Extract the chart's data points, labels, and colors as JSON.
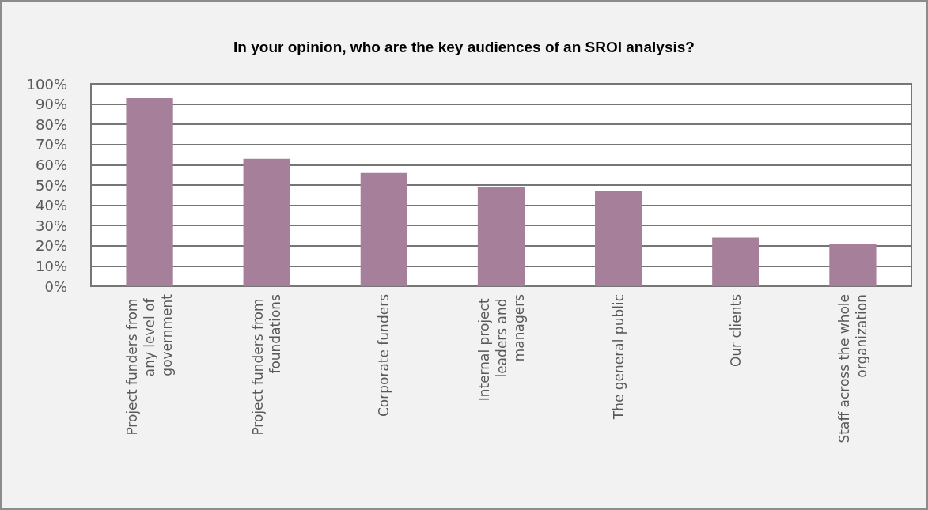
{
  "chart_data": {
    "type": "bar",
    "title": "In your opinion, who are the key audiences of an SROI analysis?",
    "categories": [
      "Project funders from any level of government",
      "Project funders from foundations",
      "Corporate funders",
      "Internal project leaders and managers",
      "The general public",
      "Our clients",
      "Staff across the whole organization"
    ],
    "values": [
      93,
      63,
      56,
      49,
      47,
      24,
      21
    ],
    "color": "#a67f9b",
    "ylim": [
      0,
      100
    ],
    "yticks": [
      {
        "value": 0,
        "label": "0%"
      },
      {
        "value": 10,
        "label": "10%"
      },
      {
        "value": 20,
        "label": "20%"
      },
      {
        "value": 30,
        "label": "30%"
      },
      {
        "value": 40,
        "label": "40%"
      },
      {
        "value": 50,
        "label": "50%"
      },
      {
        "value": 60,
        "label": "60%"
      },
      {
        "value": 70,
        "label": "70%"
      },
      {
        "value": 80,
        "label": "80%"
      },
      {
        "value": 90,
        "label": "90%"
      },
      {
        "value": 100,
        "label": "100%"
      }
    ],
    "grid": "y"
  }
}
